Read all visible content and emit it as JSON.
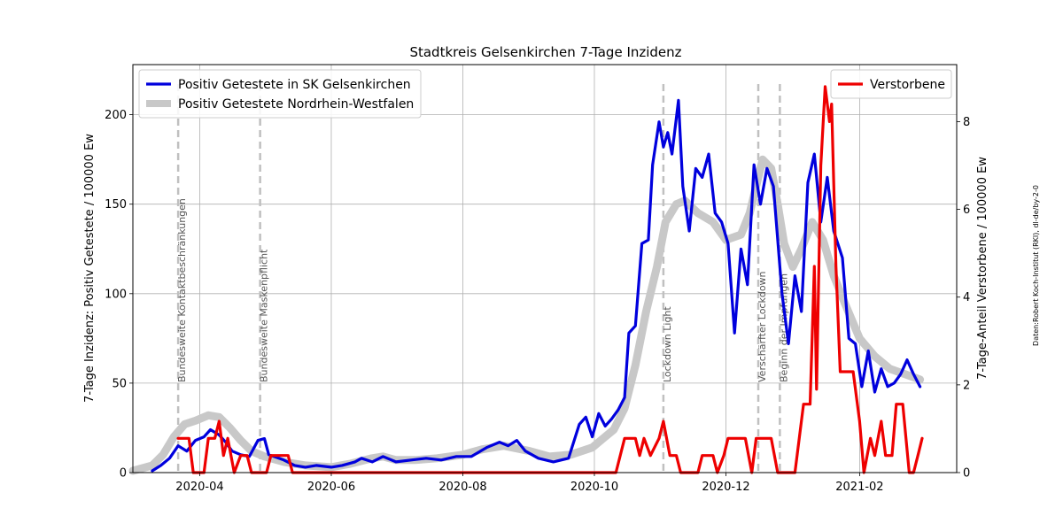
{
  "chart_data": {
    "type": "line",
    "title": "Stadtkreis Gelsenkirchen 7-Tage Inzidenz",
    "ylabel_left": "7-Tage Inzidenz: Positiv Getestete / 100000 Ew",
    "ylabel_right": "7-Tage-Anteil Verstorbene / 100000 Ew",
    "credit": "Daten:Robert Koch-Institut (RKI), dl-de/by-2-0",
    "x_range": [
      "2020-03-01",
      "2021-03-18"
    ],
    "ylim_left": [
      0,
      228
    ],
    "ylim_right": [
      0,
      9.3
    ],
    "x_ticks": [
      "2020-04",
      "2020-06",
      "2020-08",
      "2020-10",
      "2020-12",
      "2021-02"
    ],
    "y_ticks_left": [
      0,
      50,
      100,
      150,
      200
    ],
    "y_ticks_right": [
      0,
      2,
      4,
      6,
      8
    ],
    "grid": true,
    "legend_left_placement": "top-left",
    "legend_right_placement": "top-right",
    "series": [
      {
        "name": "Positiv Getestete Nordrhein-Westfalen",
        "axis": "left",
        "color": "#c8c8c8",
        "points": [
          [
            "2020-03-01",
            1
          ],
          [
            "2020-03-10",
            4
          ],
          [
            "2020-03-15",
            10
          ],
          [
            "2020-03-20",
            20
          ],
          [
            "2020-03-25",
            27
          ],
          [
            "2020-03-30",
            29
          ],
          [
            "2020-04-05",
            32
          ],
          [
            "2020-04-10",
            31
          ],
          [
            "2020-04-15",
            25
          ],
          [
            "2020-04-20",
            18
          ],
          [
            "2020-04-25",
            12
          ],
          [
            "2020-05-01",
            9
          ],
          [
            "2020-05-10",
            6
          ],
          [
            "2020-05-20",
            4
          ],
          [
            "2020-06-01",
            3
          ],
          [
            "2020-06-10",
            5
          ],
          [
            "2020-06-20",
            8
          ],
          [
            "2020-06-25",
            9
          ],
          [
            "2020-07-01",
            7
          ],
          [
            "2020-07-10",
            7
          ],
          [
            "2020-07-20",
            8
          ],
          [
            "2020-08-01",
            10
          ],
          [
            "2020-08-10",
            13
          ],
          [
            "2020-08-20",
            15
          ],
          [
            "2020-09-01",
            12
          ],
          [
            "2020-09-10",
            9
          ],
          [
            "2020-09-20",
            10
          ],
          [
            "2020-09-30",
            14
          ],
          [
            "2020-10-05",
            19
          ],
          [
            "2020-10-10",
            24
          ],
          [
            "2020-10-15",
            36
          ],
          [
            "2020-10-20",
            60
          ],
          [
            "2020-10-25",
            90
          ],
          [
            "2020-10-30",
            115
          ],
          [
            "2020-11-03",
            140
          ],
          [
            "2020-11-08",
            150
          ],
          [
            "2020-11-12",
            152
          ],
          [
            "2020-11-18",
            145
          ],
          [
            "2020-11-25",
            140
          ],
          [
            "2020-12-01",
            130
          ],
          [
            "2020-12-08",
            133
          ],
          [
            "2020-12-12",
            145
          ],
          [
            "2020-12-15",
            160
          ],
          [
            "2020-12-18",
            175
          ],
          [
            "2020-12-22",
            170
          ],
          [
            "2020-12-25",
            150
          ],
          [
            "2020-12-28",
            128
          ],
          [
            "2021-01-01",
            115
          ],
          [
            "2021-01-05",
            125
          ],
          [
            "2021-01-10",
            140
          ],
          [
            "2021-01-15",
            130
          ],
          [
            "2021-01-20",
            110
          ],
          [
            "2021-01-25",
            95
          ],
          [
            "2021-02-01",
            75
          ],
          [
            "2021-02-08",
            65
          ],
          [
            "2021-02-15",
            58
          ],
          [
            "2021-02-22",
            55
          ],
          [
            "2021-03-01",
            52
          ]
        ]
      },
      {
        "name": "Positiv Getestete in SK Gelsenkirchen",
        "axis": "left",
        "color": "#0000dd",
        "points": [
          [
            "2020-03-10",
            1
          ],
          [
            "2020-03-14",
            4
          ],
          [
            "2020-03-18",
            8
          ],
          [
            "2020-03-22",
            15
          ],
          [
            "2020-03-26",
            12
          ],
          [
            "2020-03-30",
            18
          ],
          [
            "2020-04-03",
            20
          ],
          [
            "2020-04-06",
            24
          ],
          [
            "2020-04-10",
            21
          ],
          [
            "2020-04-13",
            17
          ],
          [
            "2020-04-16",
            12
          ],
          [
            "2020-04-20",
            10
          ],
          [
            "2020-04-24",
            9
          ],
          [
            "2020-04-28",
            18
          ],
          [
            "2020-05-01",
            19
          ],
          [
            "2020-05-03",
            10
          ],
          [
            "2020-05-10",
            7
          ],
          [
            "2020-05-15",
            4
          ],
          [
            "2020-05-20",
            3
          ],
          [
            "2020-05-25",
            4
          ],
          [
            "2020-06-01",
            3
          ],
          [
            "2020-06-06",
            4
          ],
          [
            "2020-06-12",
            6
          ],
          [
            "2020-06-15",
            8
          ],
          [
            "2020-06-20",
            6
          ],
          [
            "2020-06-25",
            9
          ],
          [
            "2020-07-01",
            6
          ],
          [
            "2020-07-08",
            7
          ],
          [
            "2020-07-15",
            8
          ],
          [
            "2020-07-22",
            7
          ],
          [
            "2020-07-29",
            9
          ],
          [
            "2020-08-05",
            9
          ],
          [
            "2020-08-12",
            14
          ],
          [
            "2020-08-18",
            17
          ],
          [
            "2020-08-22",
            15
          ],
          [
            "2020-08-26",
            18
          ],
          [
            "2020-08-30",
            12
          ],
          [
            "2020-09-05",
            8
          ],
          [
            "2020-09-12",
            6
          ],
          [
            "2020-09-19",
            8
          ],
          [
            "2020-09-24",
            27
          ],
          [
            "2020-09-27",
            31
          ],
          [
            "2020-09-30",
            20
          ],
          [
            "2020-10-03",
            33
          ],
          [
            "2020-10-06",
            26
          ],
          [
            "2020-10-09",
            30
          ],
          [
            "2020-10-12",
            35
          ],
          [
            "2020-10-15",
            42
          ],
          [
            "2020-10-17",
            78
          ],
          [
            "2020-10-20",
            82
          ],
          [
            "2020-10-23",
            128
          ],
          [
            "2020-10-26",
            130
          ],
          [
            "2020-10-28",
            172
          ],
          [
            "2020-10-31",
            196
          ],
          [
            "2020-11-02",
            182
          ],
          [
            "2020-11-04",
            190
          ],
          [
            "2020-11-06",
            178
          ],
          [
            "2020-11-09",
            208
          ],
          [
            "2020-11-11",
            160
          ],
          [
            "2020-11-14",
            135
          ],
          [
            "2020-11-17",
            170
          ],
          [
            "2020-11-20",
            165
          ],
          [
            "2020-11-23",
            178
          ],
          [
            "2020-11-26",
            145
          ],
          [
            "2020-11-29",
            140
          ],
          [
            "2020-12-02",
            128
          ],
          [
            "2020-12-05",
            78
          ],
          [
            "2020-12-08",
            125
          ],
          [
            "2020-12-11",
            105
          ],
          [
            "2020-12-14",
            172
          ],
          [
            "2020-12-17",
            150
          ],
          [
            "2020-12-20",
            170
          ],
          [
            "2020-12-23",
            160
          ],
          [
            "2020-12-27",
            100
          ],
          [
            "2020-12-30",
            72
          ],
          [
            "2021-01-02",
            110
          ],
          [
            "2021-01-05",
            90
          ],
          [
            "2021-01-08",
            162
          ],
          [
            "2021-01-11",
            178
          ],
          [
            "2021-01-14",
            140
          ],
          [
            "2021-01-17",
            165
          ],
          [
            "2021-01-20",
            135
          ],
          [
            "2021-01-24",
            120
          ],
          [
            "2021-01-27",
            75
          ],
          [
            "2021-01-30",
            72
          ],
          [
            "2021-02-02",
            48
          ],
          [
            "2021-02-05",
            68
          ],
          [
            "2021-02-08",
            45
          ],
          [
            "2021-02-11",
            58
          ],
          [
            "2021-02-14",
            48
          ],
          [
            "2021-02-17",
            50
          ],
          [
            "2021-02-20",
            55
          ],
          [
            "2021-02-23",
            63
          ],
          [
            "2021-02-26",
            55
          ],
          [
            "2021-03-01",
            48
          ]
        ]
      },
      {
        "name": "Verstorbene",
        "axis": "right",
        "color": "#ee0000",
        "points": [
          [
            "2020-03-22",
            0.78
          ],
          [
            "2020-03-27",
            0.78
          ],
          [
            "2020-03-29",
            0
          ],
          [
            "2020-04-03",
            0
          ],
          [
            "2020-04-05",
            0.78
          ],
          [
            "2020-04-08",
            0.78
          ],
          [
            "2020-04-10",
            1.17
          ],
          [
            "2020-04-12",
            0.39
          ],
          [
            "2020-04-14",
            0.78
          ],
          [
            "2020-04-17",
            0
          ],
          [
            "2020-04-20",
            0.39
          ],
          [
            "2020-04-23",
            0.39
          ],
          [
            "2020-04-25",
            0
          ],
          [
            "2020-05-02",
            0
          ],
          [
            "2020-05-04",
            0.39
          ],
          [
            "2020-05-12",
            0.39
          ],
          [
            "2020-05-14",
            0
          ],
          [
            "2020-10-11",
            0
          ],
          [
            "2020-10-15",
            0.78
          ],
          [
            "2020-10-20",
            0.78
          ],
          [
            "2020-10-22",
            0.39
          ],
          [
            "2020-10-24",
            0.78
          ],
          [
            "2020-10-27",
            0.39
          ],
          [
            "2020-10-31",
            0.78
          ],
          [
            "2020-11-02",
            1.17
          ],
          [
            "2020-11-05",
            0.39
          ],
          [
            "2020-11-08",
            0.39
          ],
          [
            "2020-11-10",
            0
          ],
          [
            "2020-11-18",
            0
          ],
          [
            "2020-11-20",
            0.39
          ],
          [
            "2020-11-25",
            0.39
          ],
          [
            "2020-11-27",
            0
          ],
          [
            "2020-11-30",
            0.39
          ],
          [
            "2020-12-02",
            0.78
          ],
          [
            "2020-12-10",
            0.78
          ],
          [
            "2020-12-13",
            0
          ],
          [
            "2020-12-15",
            0.78
          ],
          [
            "2020-12-22",
            0.78
          ],
          [
            "2020-12-25",
            0
          ],
          [
            "2021-01-02",
            0
          ],
          [
            "2021-01-06",
            1.56
          ],
          [
            "2021-01-09",
            1.56
          ],
          [
            "2021-01-11",
            4.7
          ],
          [
            "2021-01-12",
            1.9
          ],
          [
            "2021-01-14",
            7.0
          ],
          [
            "2021-01-16",
            8.8
          ],
          [
            "2021-01-18",
            8.0
          ],
          [
            "2021-01-19",
            8.4
          ],
          [
            "2021-01-21",
            4.7
          ],
          [
            "2021-01-23",
            2.3
          ],
          [
            "2021-01-29",
            2.3
          ],
          [
            "2021-02-01",
            1.17
          ],
          [
            "2021-02-03",
            0
          ],
          [
            "2021-02-06",
            0.78
          ],
          [
            "2021-02-08",
            0.39
          ],
          [
            "2021-02-11",
            1.17
          ],
          [
            "2021-02-13",
            0.39
          ],
          [
            "2021-02-16",
            0.39
          ],
          [
            "2021-02-18",
            1.56
          ],
          [
            "2021-02-21",
            1.56
          ],
          [
            "2021-02-24",
            0
          ],
          [
            "2021-02-26",
            0
          ],
          [
            "2021-02-28",
            0.39
          ],
          [
            "2021-03-02",
            0.78
          ]
        ]
      }
    ],
    "events": [
      {
        "date": "2020-03-22",
        "label": "Bundesweite Kontaktbeschränkungen"
      },
      {
        "date": "2020-04-29",
        "label": "Bundesweite Maskenpflicht"
      },
      {
        "date": "2020-11-02",
        "label": "Lockdown Light"
      },
      {
        "date": "2020-12-16",
        "label": "Verschärfter Lockdown"
      },
      {
        "date": "2020-12-26",
        "label": "Beginn der Impfungen"
      }
    ]
  }
}
